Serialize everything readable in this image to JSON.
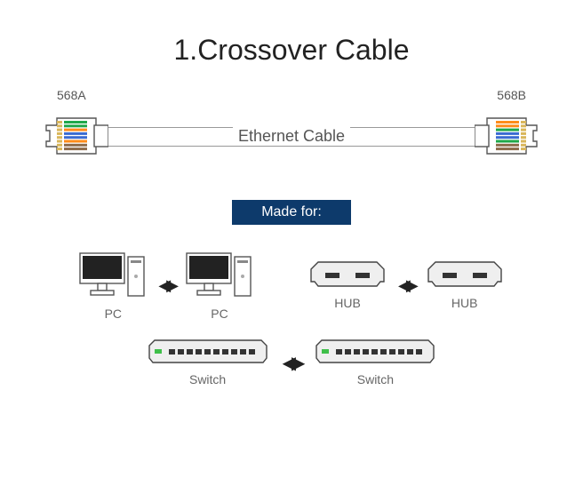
{
  "title": "1.Crossover Cable",
  "connectors": {
    "left": {
      "label": "568A",
      "wire_colors": [
        "#1fa84a",
        "#1fa84a",
        "#ff8c1a",
        "#3a6bd1",
        "#3a6bd1",
        "#ff8c1a",
        "#8c6a4a",
        "#8c6a4a"
      ]
    },
    "right": {
      "label": "568B",
      "wire_colors": [
        "#ff8c1a",
        "#ff8c1a",
        "#1fa84a",
        "#3a6bd1",
        "#3a6bd1",
        "#1fa84a",
        "#8c6a4a",
        "#8c6a4a"
      ]
    }
  },
  "cable_text": "Ethernet Cable",
  "made_for": "Made for:",
  "devices": {
    "row1": [
      {
        "type": "pc",
        "label": "PC"
      },
      {
        "type": "pc",
        "label": "PC"
      },
      {
        "type": "hub",
        "label": "HUB"
      },
      {
        "type": "hub",
        "label": "HUB"
      }
    ],
    "row2": [
      {
        "type": "switch",
        "label": "Switch"
      },
      {
        "type": "switch",
        "label": "Switch"
      }
    ]
  },
  "colors": {
    "badge_bg": "#0d3a6b",
    "outline": "#555555",
    "text": "#555555",
    "switch_led": "#3fbf4a"
  }
}
